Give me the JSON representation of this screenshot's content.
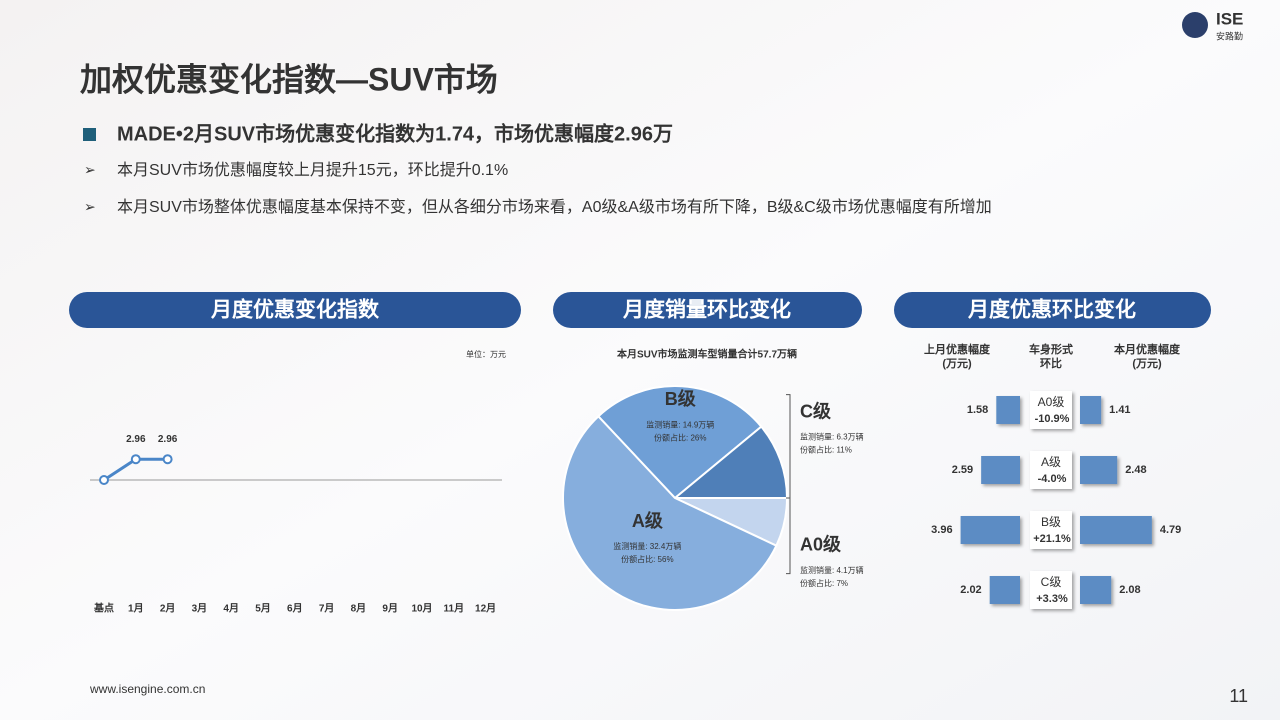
{
  "logo": {
    "brand": "ISE",
    "sub": "安路勤"
  },
  "title": "加权优惠变化指数—SUV市场",
  "headline": "MADE•2月SUV市场优惠变化指数为1.74，市场优惠幅度2.96万",
  "bullets": [
    "本月SUV市场优惠幅度较上月提升15元，环比提升0.1%",
    "本月SUV市场整体优惠幅度基本保持不变，但从各细分市场来看，A0级&A级市场有所下降，B级&C级市场优惠幅度有所增加"
  ],
  "footer": "www.isengine.com.cn",
  "page_number": "11",
  "chart_data": [
    {
      "type": "line",
      "title": "月度优惠变化指数",
      "unit": "单位：万元",
      "categories": [
        "基点",
        "1月",
        "2月",
        "3月",
        "4月",
        "5月",
        "6月",
        "7月",
        "8月",
        "9月",
        "10月",
        "11月",
        "12月"
      ],
      "values": [
        2.8,
        2.96,
        2.96,
        null,
        null,
        null,
        null,
        null,
        null,
        null,
        null,
        null,
        null
      ],
      "value_labels": [
        null,
        "2.96",
        "2.96",
        null,
        null,
        null,
        null,
        null,
        null,
        null,
        null,
        null,
        null
      ],
      "ylim": [
        2.8,
        3.2
      ],
      "color": "#4a86c8"
    },
    {
      "type": "pie",
      "title": "月度销量环比变化",
      "subtitle": "本月SUV市场监测车型销量合计57.7万辆",
      "categories": [
        "B级",
        "C级",
        "A0级",
        "A级"
      ],
      "values": [
        26,
        11,
        7,
        56
      ],
      "value_labels": [
        "份额占比: 26%",
        "份额占比: 11%",
        "份额占比: 7%",
        "份额占比: 56%"
      ],
      "sales_labels": [
        "监测销量: 14.9万辆",
        "监测销量: 6.3万辆",
        "监测销量: 4.1万辆",
        "监测销量: 32.4万辆"
      ],
      "colors": [
        "#6f9fd6",
        "#4f7fb8",
        "#c3d5ee",
        "#86aedd"
      ]
    },
    {
      "type": "butterfly",
      "title": "月度优惠环比变化",
      "headers": [
        [
          "上月优惠幅度",
          "(万元)"
        ],
        [
          "车身形式",
          "环比"
        ],
        [
          "本月优惠幅度",
          "(万元)"
        ]
      ],
      "categories": [
        "A0级",
        "A级",
        "B级",
        "C级"
      ],
      "series": [
        {
          "name": "上月优惠幅度",
          "color": "#5b8cc4",
          "values": [
            1.58,
            2.59,
            3.96,
            2.02
          ]
        },
        {
          "name": "本月优惠幅度",
          "color": "#5b8cc4",
          "values": [
            1.41,
            2.48,
            4.79,
            2.08
          ]
        }
      ],
      "change": [
        -10.9,
        -4.0,
        21.1,
        3.3
      ],
      "change_labels": [
        "-10.9%",
        "-4.0%",
        "+21.1%",
        "+3.3%"
      ],
      "negative_color": "#2e8b2e",
      "positive_color": "#c00000",
      "xlim": [
        0,
        5
      ]
    }
  ]
}
